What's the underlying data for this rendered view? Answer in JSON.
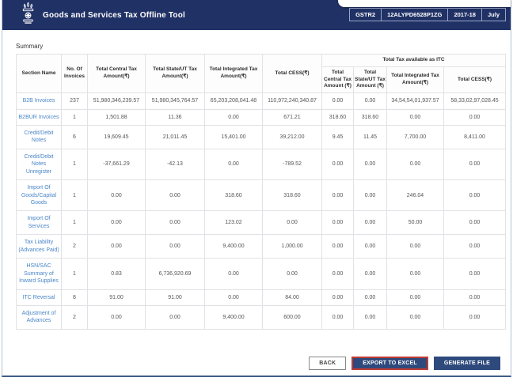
{
  "header": {
    "title": "Goods and Services Tax Offline Tool",
    "badges": [
      "GSTR2",
      "12ALYPD6528P1ZG",
      "2017-18",
      "July"
    ]
  },
  "summary": {
    "label": "Summary"
  },
  "table": {
    "columns": [
      "Section Name",
      "No. Of Invoices",
      "Total Central Tax Amount(₹)",
      "Total State/UT Tax Amount(₹)",
      "Total Integrated Tax Amount(₹)",
      "Total CESS(₹)"
    ],
    "itc_group_label": "Total Tax available as ITC",
    "itc_columns": [
      "Total Central Tax Amount (₹)",
      "Total State/UT Tax Amount (₹)",
      "Total Integrated Tax Amount(₹)",
      "Total CESS(₹)"
    ],
    "rows": [
      {
        "section": "B2B Invoices",
        "values": [
          "237",
          "51,980,346,239.57",
          "51,980,345,764.57",
          "65,203,208,041.48",
          "110,972,240,340.87",
          "0.00",
          "0.00",
          "34,54,54,01,937.57",
          "58,33,02,97,028.45"
        ]
      },
      {
        "section": "B2BUR Invoices",
        "values": [
          "1",
          "1,501.88",
          "11.36",
          "0.00",
          "671.21",
          "318.60",
          "318.60",
          "0.00",
          "0.00"
        ]
      },
      {
        "section": "Credit/Debit Notes",
        "values": [
          "6",
          "19,609.45",
          "21,011.45",
          "15,401.00",
          "39,212.00",
          "9.45",
          "11.45",
          "7,700.00",
          "8,411.00"
        ]
      },
      {
        "section": "Credit/Debit Notes Unregister",
        "values": [
          "1",
          "-37,661.29",
          "-42.13",
          "0.00",
          "-789.52",
          "0.00",
          "0.00",
          "0.00",
          "0.00"
        ]
      },
      {
        "section": "Import Of Goods/Capital Goods",
        "values": [
          "1",
          "0.00",
          "0.00",
          "318.60",
          "318.60",
          "0.00",
          "0.00",
          "246.04",
          "0.00"
        ]
      },
      {
        "section": "Import Of Services",
        "values": [
          "1",
          "0.00",
          "0.00",
          "123.02",
          "0.00",
          "0.00",
          "0.00",
          "50.00",
          "0.00"
        ]
      },
      {
        "section": "Tax Liability (Advances Paid)",
        "values": [
          "2",
          "0.00",
          "0.00",
          "9,400.00",
          "1,000.00",
          "0.00",
          "0.00",
          "0.00",
          "0.00"
        ]
      },
      {
        "section": "HSN/SAC Summary of Inward Supplies",
        "values": [
          "1",
          "0.83",
          "6,736,920.69",
          "0.00",
          "0.00",
          "0.00",
          "0.00",
          "0.00",
          "0.00"
        ]
      },
      {
        "section": "ITC Reversal",
        "values": [
          "8",
          "91.00",
          "91.00",
          "0.00",
          "84.00",
          "0.00",
          "0.00",
          "0.00",
          "0.00"
        ]
      },
      {
        "section": "Adjustment of Advances",
        "values": [
          "2",
          "0.00",
          "0.00",
          "9,400.00",
          "600.00",
          "0.00",
          "0.00",
          "0.00",
          "0.00"
        ]
      }
    ]
  },
  "footer": {
    "back_label": "BACK",
    "export_label": "EXPORT TO EXCEL",
    "generate_label": "GENERATE FILE"
  },
  "colors": {
    "header_navy": "#203165",
    "link_blue": "#4a86c8",
    "button_navy": "#2e4a7d",
    "highlight_red": "#bf3a32",
    "frame_border": "#b3c3d6"
  }
}
